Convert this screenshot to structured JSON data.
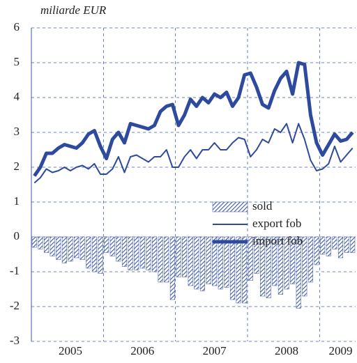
{
  "chart_data": {
    "type": "line_bar",
    "y_label": "miliarde EUR",
    "categories": [
      null,
      null,
      null,
      null,
      null,
      null,
      "2005",
      null,
      null,
      null,
      null,
      null,
      null,
      null,
      null,
      null,
      null,
      null,
      "2006",
      null,
      null,
      null,
      null,
      null,
      null,
      null,
      null,
      null,
      null,
      null,
      "2007",
      null,
      null,
      null,
      null,
      null,
      null,
      null,
      null,
      null,
      null,
      null,
      "2008",
      null,
      null,
      null,
      null,
      null,
      null,
      null,
      null,
      "2009",
      null,
      null
    ],
    "ylim": [
      -3,
      6
    ],
    "yticks": [
      -3,
      -2,
      -1,
      0,
      1,
      2,
      3,
      4,
      5,
      6
    ],
    "grid": true,
    "legend": "center-right",
    "series": [
      {
        "name": "sold",
        "kind": "bar",
        "color": "#3a57a6",
        "values": [
          -0.3,
          -0.35,
          -0.45,
          -0.55,
          -0.65,
          -0.75,
          -0.7,
          -0.6,
          -0.65,
          -0.9,
          -1.0,
          -1.05,
          -0.45,
          -0.55,
          -0.7,
          -0.85,
          -0.95,
          -0.95,
          -0.9,
          -0.95,
          -1.0,
          -1.3,
          -1.3,
          -1.8,
          -1.15,
          -1.15,
          -1.4,
          -1.5,
          -1.55,
          -1.35,
          -1.4,
          -1.5,
          -1.45,
          -1.8,
          -1.9,
          -1.9,
          -1.25,
          -1.05,
          -1.7,
          -1.75,
          -1.4,
          -1.65,
          -1.5,
          -1.35,
          -2.05,
          -1.7,
          -1.3,
          -0.8,
          -0.5,
          -0.55,
          -0.35,
          -0.6,
          -0.45,
          -0.45
        ]
      },
      {
        "name": "export fob",
        "kind": "line",
        "width": 2,
        "color": "#2e4a9e",
        "values": [
          1.55,
          1.7,
          1.95,
          1.85,
          1.9,
          2.0,
          1.9,
          2.0,
          2.05,
          1.95,
          2.1,
          1.8,
          1.8,
          1.95,
          2.3,
          1.85,
          2.3,
          2.35,
          2.25,
          2.15,
          2.3,
          2.3,
          2.5,
          2.0,
          2.0,
          2.3,
          2.5,
          2.25,
          2.5,
          2.5,
          2.7,
          2.5,
          2.5,
          2.7,
          2.85,
          2.8,
          2.3,
          2.5,
          2.8,
          2.7,
          3.1,
          3.0,
          3.25,
          2.7,
          3.25,
          2.8,
          2.2,
          1.9,
          1.95,
          2.1,
          2.6,
          2.15,
          2.35,
          2.55
        ]
      },
      {
        "name": "import fob",
        "kind": "line",
        "width": 5,
        "color": "#2e4a9e",
        "values": [
          1.75,
          2.0,
          2.4,
          2.4,
          2.55,
          2.65,
          2.6,
          2.55,
          2.7,
          2.95,
          3.05,
          2.6,
          2.25,
          2.8,
          3.0,
          2.7,
          3.25,
          3.2,
          3.15,
          3.1,
          3.2,
          3.6,
          3.75,
          3.8,
          3.2,
          3.5,
          3.95,
          3.75,
          4.0,
          3.85,
          4.1,
          4.0,
          4.15,
          3.75,
          4.0,
          4.65,
          4.7,
          4.3,
          3.8,
          3.7,
          4.2,
          4.55,
          4.75,
          4.1,
          5.0,
          4.95,
          3.5,
          2.7,
          2.35,
          2.65,
          2.95,
          2.75,
          2.8,
          3.0
        ]
      }
    ]
  }
}
